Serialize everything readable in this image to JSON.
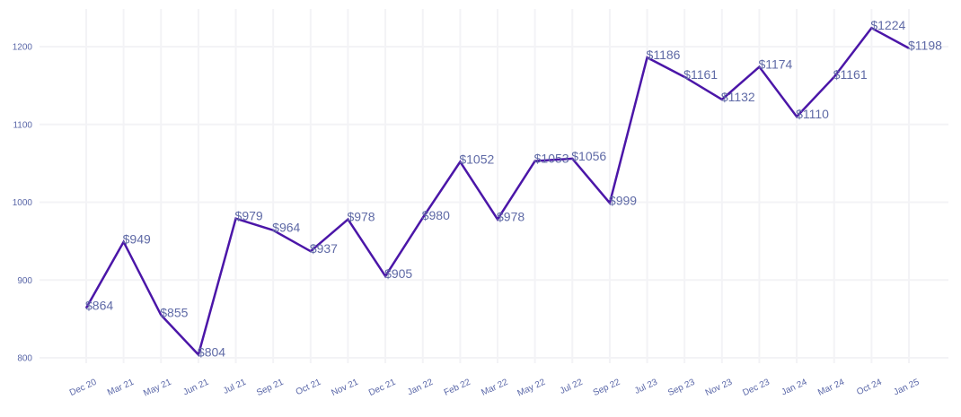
{
  "chart_data": {
    "type": "line",
    "title": "",
    "xlabel": "",
    "ylabel": "",
    "categories": [
      "Dec 20",
      "Mar 21",
      "May 21",
      "Jun 21",
      "Jul 21",
      "Sep 21",
      "Oct 21",
      "Nov 21",
      "Dec 21",
      "Jan 22",
      "Feb 22",
      "Mar 22",
      "May 22",
      "Jul 22",
      "Sep 22",
      "Jul 23",
      "Sep 23",
      "Nov 23",
      "Dec 23",
      "Jan 24",
      "Mar 24",
      "Oct 24",
      "Jan 25"
    ],
    "series": [
      {
        "name": "Price",
        "values": [
          864,
          949,
          855,
          804,
          979,
          964,
          937,
          978,
          905,
          980,
          1052,
          978,
          1053,
          1056,
          999,
          1186,
          1161,
          1132,
          1174,
          1110,
          1161,
          1224,
          1198
        ],
        "labels": [
          "$864",
          "$949",
          "$855",
          "$804",
          "$979",
          "$964",
          "$937",
          "$978",
          "$905",
          "$980",
          "$1052",
          "$978",
          "$1053",
          "$1056",
          "$999",
          "$1186",
          "$1161",
          "$1132",
          "$1174",
          "$1110",
          "$1161",
          "$1224",
          "$1198"
        ]
      }
    ],
    "yticks": [
      "800",
      "900",
      "1000",
      "1100",
      "1200"
    ],
    "ytick_values": [
      800,
      900,
      1000,
      1100,
      1200
    ],
    "ylim": [
      790,
      1245
    ],
    "grid": true,
    "legend": "none",
    "colors": {
      "line": "#4b16a8",
      "label": "#5f6aa6",
      "tick": "#5a67a8",
      "grid": "#f3f3f6"
    }
  }
}
